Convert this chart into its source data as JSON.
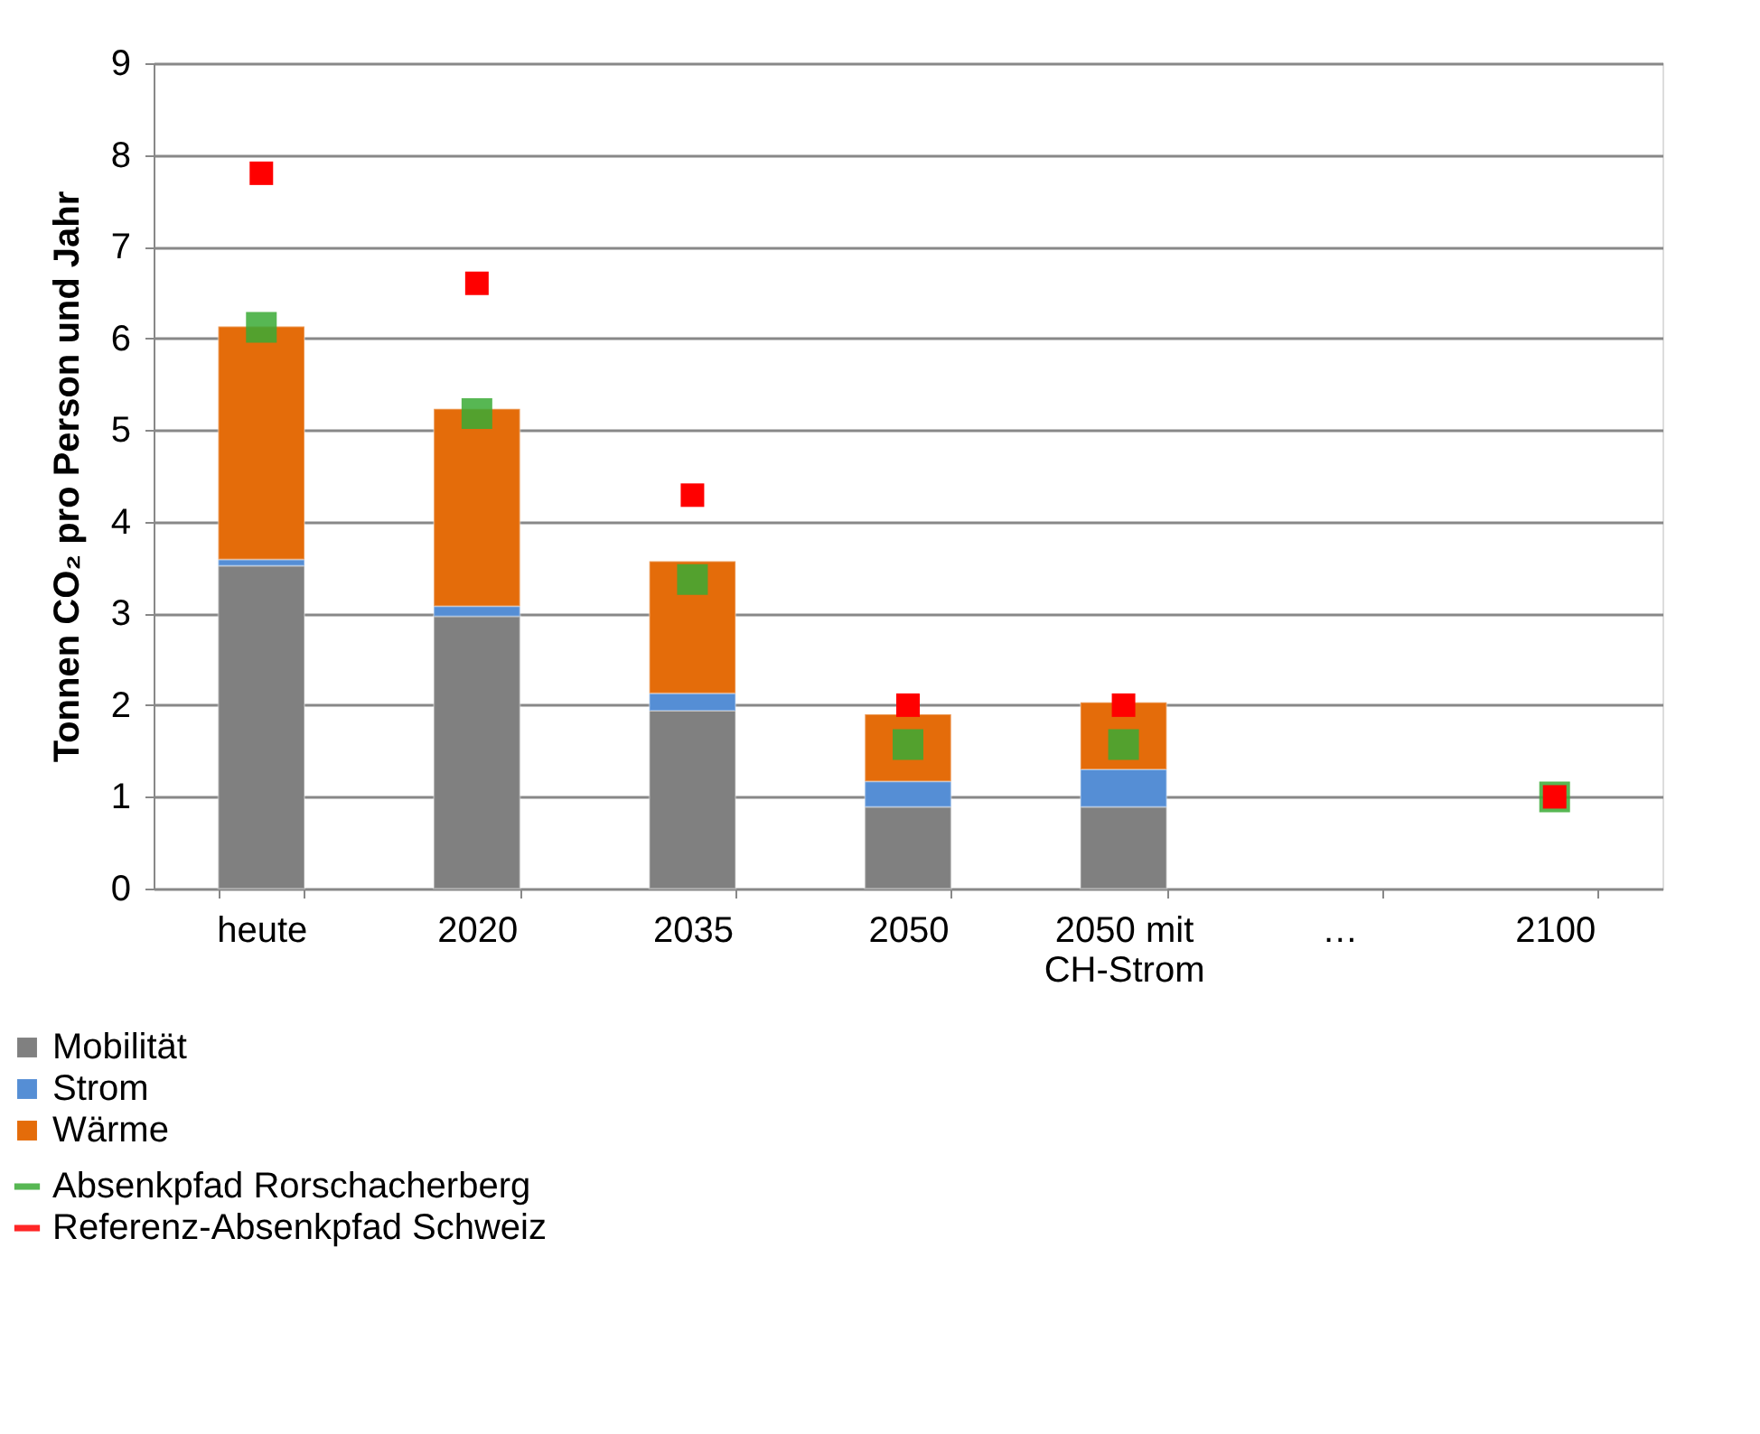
{
  "chart_data": {
    "type": "bar",
    "stacked": true,
    "ylabel": "Tonnen CO₂ pro Person und Jahr",
    "categories": [
      "heute",
      "2020",
      "2035",
      "2050",
      "2050 mit\nCH-Strom",
      "…",
      "2100"
    ],
    "series": [
      {
        "name": "Mobilität",
        "color": "#808080",
        "values": [
          3.52,
          2.97,
          1.94,
          0.89,
          0.89,
          null,
          null
        ]
      },
      {
        "name": "Strom",
        "color": "#558ed5",
        "values": [
          0.07,
          0.11,
          0.19,
          0.28,
          0.41,
          null,
          null
        ]
      },
      {
        "name": "Wärme",
        "color": "#e46c0a",
        "values": [
          2.54,
          2.15,
          1.44,
          0.73,
          0.73,
          null,
          null
        ]
      },
      {
        "name": "Absenkpfad Rorschacherberg",
        "color": "#3aaa35",
        "type": "scatter",
        "values": [
          6.12,
          5.18,
          3.37,
          1.57,
          1.57,
          null,
          1.0
        ]
      },
      {
        "name": "Referenz-Absenkpfad Schweiz",
        "color": "#ff0000",
        "type": "scatter",
        "values": [
          7.8,
          6.6,
          4.29,
          2.0,
          2.0,
          null,
          1.0
        ]
      }
    ],
    "ylim": [
      0,
      9
    ],
    "yticks": [
      0,
      1,
      2,
      3,
      4,
      5,
      6,
      7,
      8,
      9
    ],
    "grid": "y",
    "legend": "bottom left",
    "marker": "square"
  }
}
